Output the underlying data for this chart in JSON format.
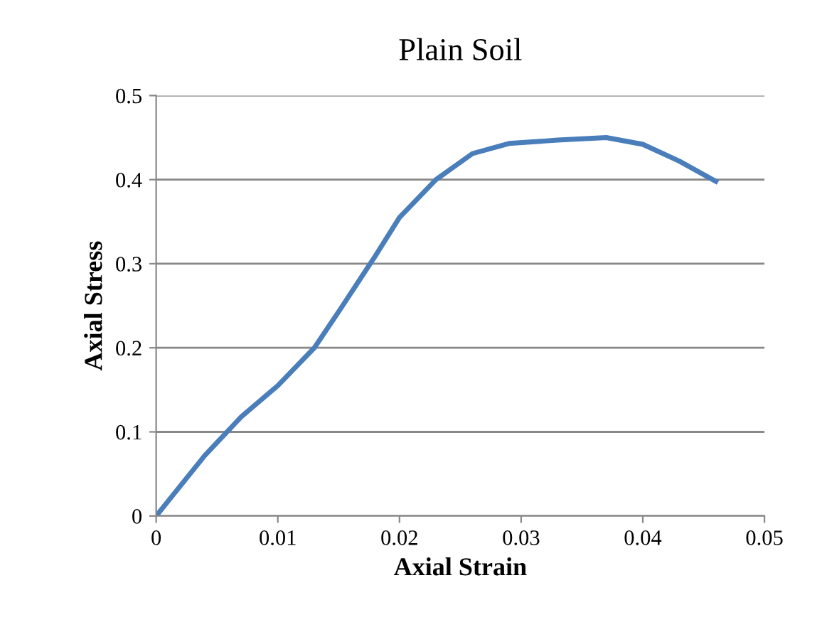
{
  "chart_data": {
    "type": "line",
    "title": "Plain Soil",
    "xlabel": "Axial Strain",
    "ylabel": "Axial Stress",
    "series": [
      {
        "color": "#4a7ebb",
        "x": [
          0,
          0.004,
          0.007,
          0.01,
          0.013,
          0.015,
          0.018,
          0.02,
          0.023,
          0.026,
          0.029,
          0.033,
          0.037,
          0.04,
          0.043,
          0.046
        ],
        "values": [
          0,
          0.072,
          0.118,
          0.155,
          0.2,
          0.243,
          0.309,
          0.355,
          0.4,
          0.431,
          0.443,
          0.447,
          0.45,
          0.442,
          0.422,
          0.398
        ]
      }
    ],
    "xlim": [
      0,
      0.05
    ],
    "ylim": [
      0,
      0.5
    ],
    "xticks": [
      0,
      0.01,
      0.02,
      0.03,
      0.04,
      0.05
    ],
    "yticks": [
      0,
      0.1,
      0.2,
      0.3,
      0.4,
      0.5
    ],
    "grid": "y",
    "legend": false,
    "marker": "none",
    "line_style": "solid"
  }
}
